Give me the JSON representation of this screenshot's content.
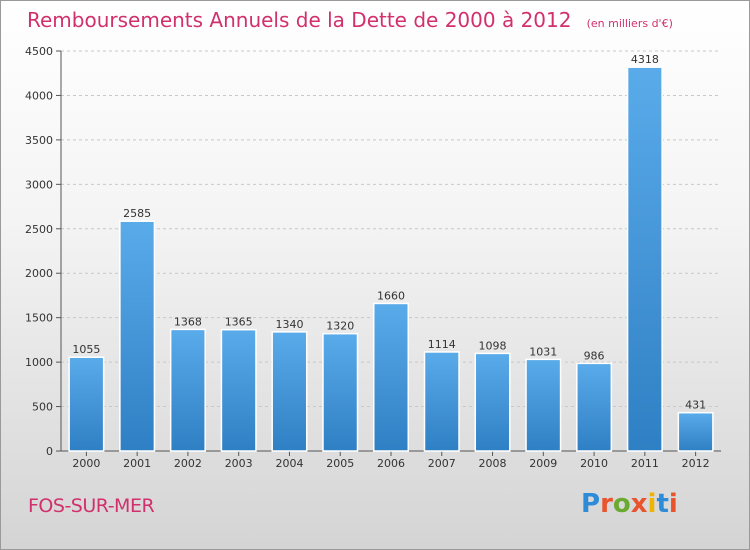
{
  "chart_data": {
    "type": "bar",
    "title": "Remboursements Annuels de la Dette de 2000 à 2012",
    "unit_label": "(en milliers d'€)",
    "categories": [
      "2000",
      "2001",
      "2002",
      "2003",
      "2004",
      "2005",
      "2006",
      "2007",
      "2008",
      "2009",
      "2010",
      "2011",
      "2012"
    ],
    "values": [
      1055,
      2585,
      1368,
      1365,
      1340,
      1320,
      1660,
      1114,
      1098,
      1031,
      986,
      4318,
      431
    ],
    "value_labels": [
      "1055",
      "2585",
      "1368",
      "1365",
      "1340",
      "1320",
      "1660",
      "1114",
      "1098",
      "1031",
      "986",
      "4318",
      "431"
    ],
    "ylim": [
      0,
      4500
    ],
    "yticks": [
      0,
      500,
      1000,
      1500,
      2000,
      2500,
      3000,
      3500,
      4000,
      4500
    ],
    "grid": "horizontal-dashed",
    "legend": "none",
    "bar_color": "#4a9fe0"
  },
  "footer": {
    "city": "FOS-SUR-MER",
    "logo_text": "Proxiti",
    "logo_colors": [
      "#2e8bd8",
      "#e8542c",
      "#6aaa30",
      "#e8542c",
      "#f0b400",
      "#2e8bd8",
      "#e8542c"
    ]
  }
}
